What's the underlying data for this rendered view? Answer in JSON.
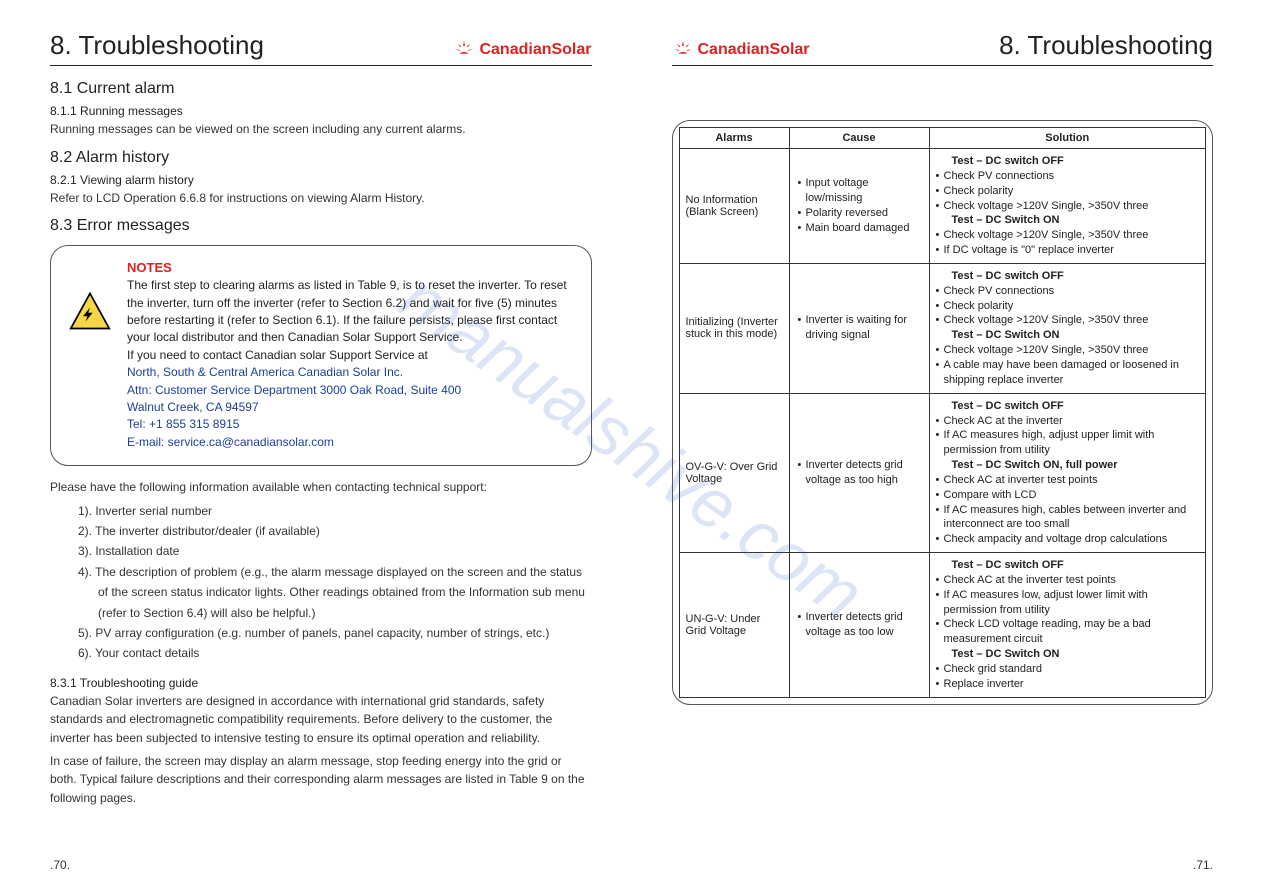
{
  "watermark": "manualshive.com",
  "brand": {
    "name": "CanadianSolar",
    "icon_color": "#d22"
  },
  "left_page": {
    "chapter": "8. Troubleshooting",
    "page_number": ".70.",
    "s1": {
      "heading": "8.1 Current alarm",
      "sub": "8.1.1 Running messages",
      "body": "Running messages can be viewed on the screen including any current alarms."
    },
    "s2": {
      "heading": "8.2 Alarm history",
      "sub": "8.2.1 Viewing alarm history",
      "body": "Refer to LCD Operation 6.6.8 for instructions on viewing Alarm History."
    },
    "s3": {
      "heading": "8.3 Error messages"
    },
    "notes": {
      "title": "NOTES",
      "body": "The first step to clearing alarms as listed in Table 9, is to reset the inverter. To reset the inverter, turn off the inverter (refer to Section 6.2) and wait for five (5) minutes before restarting it (refer to Section 6.1). If the failure persists, please first contact your local distributor and then Canadian Solar Support Service.",
      "lead": "If you need to contact Canadian solar Support Service at",
      "contact": "North, South & Central America Canadian Solar Inc.\nAttn: Customer Service Department 3000 Oak Road, Suite 400\nWalnut Creek, CA 94597\nTel: +1 855 315 8915\nE-mail: service.ca@canadiansolar.com"
    },
    "support_intro": "Please have the following information available when contacting technical support:",
    "support_items": [
      "1). Inverter serial number",
      "2). The inverter distributor/dealer (if available)",
      "3). Installation date",
      "4). The description of problem (e.g., the alarm message displayed on the screen and the status of the screen status indicator lights. Other readings obtained from the Information sub menu (refer to Section 6.4) will also be helpful.)",
      "5). PV array configuration (e.g. number of panels, panel capacity, number of strings, etc.)",
      "6). Your contact details"
    ],
    "guide": {
      "sub": "8.3.1 Troubleshooting guide",
      "p1": "Canadian Solar inverters are designed in accordance with international grid standards, safety standards and electromagnetic compatibility requirements. Before delivery to the customer, the inverter has been subjected to intensive testing to ensure its optimal operation and reliability.",
      "p2": "In case of failure, the screen may display an alarm message, stop feeding energy into the grid or both. Typical failure descriptions and their corresponding alarm messages are listed in Table 9 on the following pages."
    }
  },
  "right_page": {
    "chapter": "8. Troubleshooting",
    "page_number": ".71.",
    "table": {
      "headers": [
        "Alarms",
        "Cause",
        "Solution"
      ],
      "rows": [
        {
          "alarm": "No Information (Blank Screen)",
          "cause": [
            "Input voltage low/missing",
            "Polarity reversed",
            "Main board damaged"
          ],
          "solution": [
            {
              "t": "h",
              "v": "Test – DC switch OFF"
            },
            {
              "t": "b",
              "v": "Check PV connections"
            },
            {
              "t": "b",
              "v": "Check polarity"
            },
            {
              "t": "b",
              "v": "Check voltage >120V Single, >350V three"
            },
            {
              "t": "h2",
              "v": "Test – DC Switch ON"
            },
            {
              "t": "b",
              "v": "Check voltage >120V Single, >350V three"
            },
            {
              "t": "b",
              "v": "If DC voltage is \"0\" replace inverter"
            }
          ]
        },
        {
          "alarm": "Initializing (Inverter stuck in this mode)",
          "cause": [
            "Inverter is waiting for driving signal"
          ],
          "solution": [
            {
              "t": "h",
              "v": "Test – DC switch OFF"
            },
            {
              "t": "b",
              "v": "Check PV connections"
            },
            {
              "t": "b",
              "v": "Check polarity"
            },
            {
              "t": "b",
              "v": "Check voltage >120V Single, >350V three"
            },
            {
              "t": "h2",
              "v": "Test – DC Switch ON"
            },
            {
              "t": "b",
              "v": "Check voltage >120V Single, >350V three"
            },
            {
              "t": "b",
              "v": "A cable may have been damaged or loosened in shipping replace inverter"
            }
          ]
        },
        {
          "alarm": "OV-G-V: Over Grid Voltage",
          "cause": [
            "Inverter detects grid voltage as too high"
          ],
          "solution": [
            {
              "t": "h",
              "v": "Test – DC switch OFF"
            },
            {
              "t": "b",
              "v": "Check AC at the inverter"
            },
            {
              "t": "b",
              "v": "If AC measures high, adjust upper limit with permission from utility"
            },
            {
              "t": "h2",
              "v": "Test – DC Switch ON, full power"
            },
            {
              "t": "b",
              "v": "Check AC at inverter test points"
            },
            {
              "t": "b",
              "v": "Compare with LCD"
            },
            {
              "t": "b",
              "v": "If AC measures high, cables between inverter and interconnect are too small"
            },
            {
              "t": "b",
              "v": "Check ampacity and voltage drop calculations"
            }
          ]
        },
        {
          "alarm": "UN-G-V: Under Grid Voltage",
          "cause": [
            "Inverter detects grid voltage as too low"
          ],
          "solution": [
            {
              "t": "h",
              "v": "Test – DC switch OFF"
            },
            {
              "t": "b",
              "v": "Check AC at the inverter test points"
            },
            {
              "t": "b",
              "v": "If AC measures low, adjust lower limit with permission from utility"
            },
            {
              "t": "b",
              "v": "Check LCD voltage reading, may be a bad measurement circuit"
            },
            {
              "t": "h2",
              "v": "Test – DC Switch ON"
            },
            {
              "t": "b",
              "v": "Check grid standard"
            },
            {
              "t": "b",
              "v": "Replace inverter"
            }
          ]
        }
      ]
    }
  },
  "colors": {
    "accent": "#d22",
    "link": "#1b3f9c",
    "border": "#333",
    "watermark": "rgba(60,110,200,0.18)"
  }
}
